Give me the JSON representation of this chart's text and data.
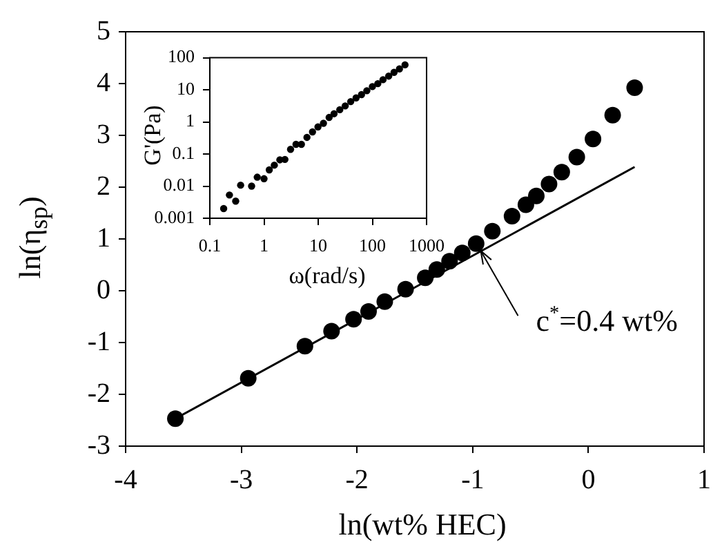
{
  "chart_data": [
    {
      "type": "scatter",
      "xlabel": "ln(wt% HEC)",
      "ylabel": "ln(η$_{sp}$)",
      "xlim": [
        -4,
        1
      ],
      "xticks": [
        -4,
        -3,
        -2,
        -1,
        0,
        1
      ],
      "ylim": [
        -3,
        5
      ],
      "yticks": [
        -3,
        -2,
        -1,
        0,
        1,
        2,
        3,
        4,
        5
      ],
      "grid": false,
      "legend": false,
      "annotations": [
        {
          "text": "c$^{*}$=0.4 wt%",
          "x": -0.93,
          "y": 0.77
        }
      ],
      "series": [
        {
          "type": "scatter",
          "marker": "circle",
          "color": "#000000",
          "x": [
            -3.57,
            -2.94,
            -2.45,
            -2.22,
            -2.03,
            -1.9,
            -1.76,
            -1.58,
            -1.41,
            -1.31,
            -1.2,
            -1.09,
            -0.97,
            -0.83,
            -0.66,
            -0.54,
            -0.45,
            -0.34,
            -0.23,
            -0.1,
            0.04,
            0.21,
            0.4
          ],
          "values": [
            -2.47,
            -1.69,
            -1.07,
            -0.78,
            -0.55,
            -0.4,
            -0.21,
            0.03,
            0.25,
            0.41,
            0.57,
            0.73,
            0.91,
            1.15,
            1.44,
            1.66,
            1.83,
            2.06,
            2.29,
            2.58,
            2.93,
            3.39,
            3.92
          ]
        },
        {
          "type": "line",
          "marker": "none",
          "color": "#000000",
          "line_style": "solid",
          "x": [
            -3.57,
            0.4
          ],
          "values": [
            -2.47,
            2.39
          ]
        }
      ]
    },
    {
      "type": "scatter",
      "xlabel": "ω(rad/s)",
      "ylabel": "G'(Pa)",
      "log": "xy",
      "xlim": [
        0.1,
        1000
      ],
      "xticks": [
        0.1,
        1,
        10,
        100,
        1000
      ],
      "ylim": [
        0.001,
        100
      ],
      "yticks": [
        0.001,
        0.01,
        0.1,
        1,
        10,
        100
      ],
      "grid": false,
      "legend": false,
      "marker": "circle",
      "series": [
        {
          "type": "scatter",
          "color": "#000000",
          "x": [
            0.18,
            0.23,
            0.3,
            0.37,
            0.59,
            0.75,
            1.0,
            1.25,
            1.55,
            1.96,
            2.43,
            3.09,
            3.89,
            4.9,
            6.2,
            7.85,
            9.9,
            12.5,
            15.9,
            19.6,
            25,
            31.5,
            39.8,
            50,
            63,
            79,
            100,
            126,
            157,
            200,
            251,
            316,
            400
          ],
          "values": [
            0.002,
            0.0053,
            0.0034,
            0.0107,
            0.01,
            0.019,
            0.017,
            0.032,
            0.045,
            0.066,
            0.068,
            0.14,
            0.2,
            0.2,
            0.33,
            0.49,
            0.7,
            0.91,
            1.38,
            1.8,
            2.4,
            3.16,
            4.3,
            5.6,
            7.1,
            9.4,
            12.6,
            15.6,
            20.7,
            26.8,
            35,
            45,
            60
          ]
        }
      ]
    }
  ]
}
